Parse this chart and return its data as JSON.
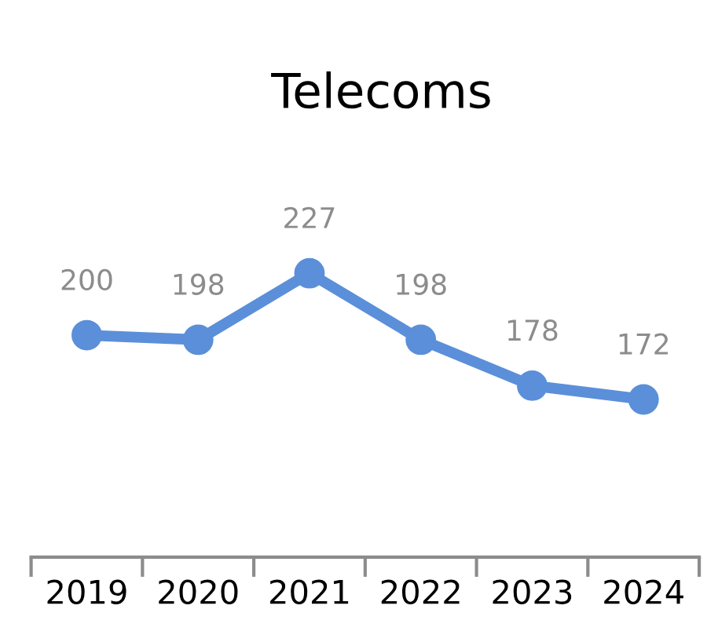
{
  "chart_data": {
    "type": "line",
    "title": "Telecoms",
    "categories": [
      "2019",
      "2020",
      "2021",
      "2022",
      "2023",
      "2024"
    ],
    "values": [
      200,
      198,
      227,
      198,
      178,
      172
    ],
    "color": "#5b8fd9",
    "marker": "circle",
    "line_style": "solid",
    "data_labels": true,
    "grid": false,
    "legend": false
  }
}
